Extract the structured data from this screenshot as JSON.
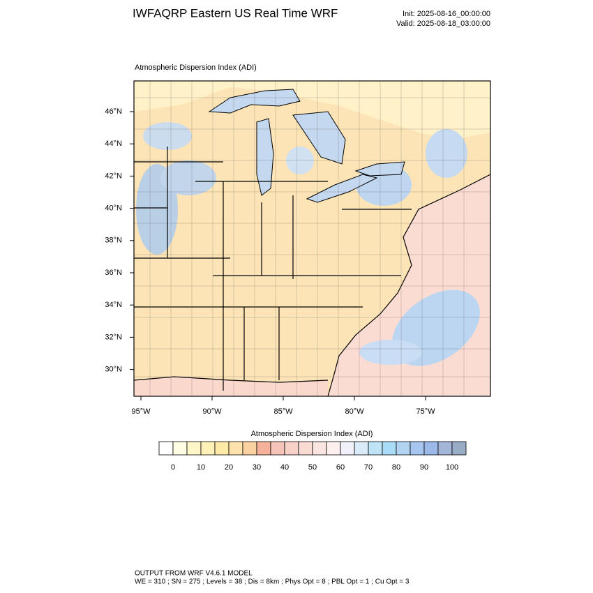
{
  "header": {
    "title": "IWFAQRP Eastern US Real Time WRF",
    "init": "Init: 2025-08-16_00:00:00",
    "valid": "Valid: 2025-08-18_03:00:00"
  },
  "map": {
    "title": "Atmospheric Dispersion Index   (ADI)",
    "latitude_labels": [
      "46°N",
      "44°N",
      "42°N",
      "40°N",
      "38°N",
      "36°N",
      "34°N",
      "32°N",
      "30°N"
    ],
    "longitude_labels": [
      "95°W",
      "90°W",
      "85°W",
      "80°W",
      "75°W"
    ]
  },
  "colorbar": {
    "title": "Atmospheric Dispersion Index (ADI)",
    "ticks": [
      "0",
      "10",
      "20",
      "30",
      "40",
      "50",
      "60",
      "70",
      "80",
      "90",
      "100"
    ],
    "colors": [
      "#ffffff",
      "#fffde3",
      "#fff7c8",
      "#fff1b8",
      "#ffe9a6",
      "#fde2ac",
      "#f9d2a0",
      "#f6b19b",
      "#f5c3b8",
      "#f7d0c8",
      "#f9dbd4",
      "#fbe5e0",
      "#fdf0ee",
      "#f1f1fb",
      "#d9eaf9",
      "#bfe3f7",
      "#a9dcf6",
      "#b3d3f2",
      "#a7c6ef",
      "#9db9ea",
      "#a3b6d8",
      "#98acc6"
    ]
  },
  "footer": {
    "line1": "OUTPUT FROM WRF V4.6.1 MODEL",
    "line2": "WE = 310 ; SN = 275 ; Levels = 38 ; Dis = 8km ; Phys Opt = 8 ; PBL Opt = 1 ; Cu Opt = 3"
  }
}
